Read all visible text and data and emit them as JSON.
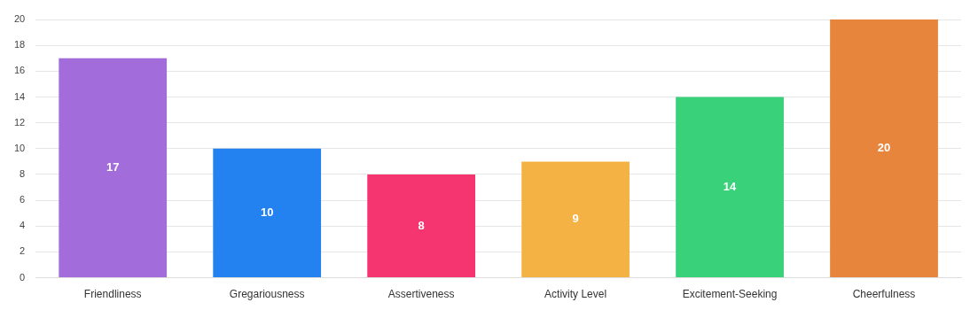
{
  "chart_data": {
    "type": "bar",
    "categories": [
      "Friendliness",
      "Gregariousness",
      "Assertiveness",
      "Activity Level",
      "Excitement-Seeking",
      "Cheerfulness"
    ],
    "values": [
      17,
      10,
      8,
      9,
      14,
      20
    ],
    "colors": [
      "#a26ddb",
      "#2382f0",
      "#f5356f",
      "#f5b244",
      "#39d179",
      "#e6853b"
    ],
    "ylim": [
      0,
      20
    ],
    "yticks": [
      0,
      2,
      4,
      6,
      8,
      10,
      12,
      14,
      16,
      18,
      20
    ],
    "grid": "y",
    "data_labels": true,
    "legend": false
  }
}
